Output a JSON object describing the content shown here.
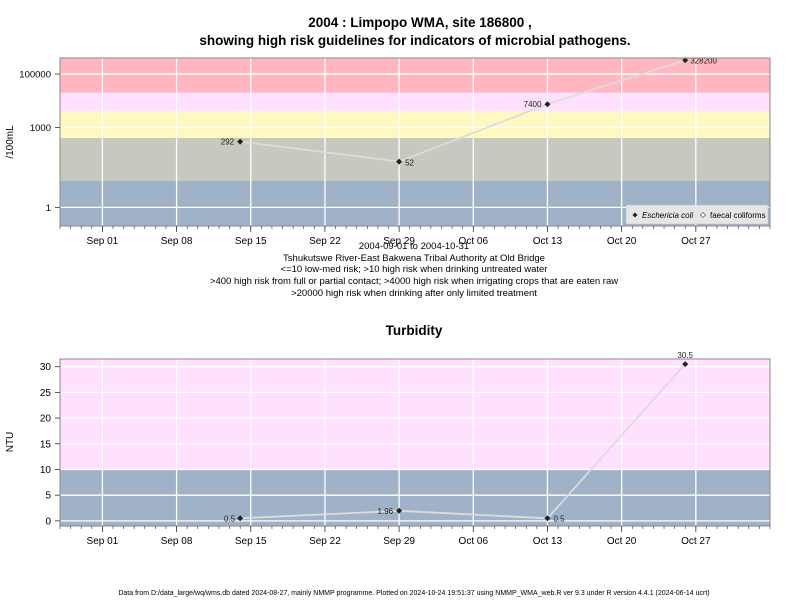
{
  "title_line1": "2004 : Limpopo WMA, site 186800 ,",
  "title_line2": "showing high risk guidelines for indicators of microbial pathogens.",
  "x_ticks": [
    "Sep 01",
    "Sep 08",
    "Sep 15",
    "Sep 22",
    "Sep 29",
    "Oct 06",
    "Oct 13",
    "Oct 20",
    "Oct 27"
  ],
  "subtitle_lines": [
    "2004-09-01 to 2004-10-31",
    "Tshukutswe River-East Bakwena Tribal Authority at Old Bridge",
    "<=10 low-med risk; >10 high risk when drinking untreated water",
    ">400 high risk from full or partial contact; >4000 high risk when irrigating crops that are eaten raw",
    ">20000 high risk when drinking after only limited treatment"
  ],
  "footer": "Data from D:/data_large/wq/wms.db dated 2024-08-27, mainly NMMP programme. Plotted on 2024-10-24 19:51:37 using NMMP_WMA_web.R ver 9.3 under R version 4.4.1 (2024-06-14 ucrt)",
  "colors": {
    "band_red": "#ffb6c1",
    "band_pink": "#ffe0ff",
    "band_yellow": "#fff8c0",
    "band_gray": "#c5c9be",
    "band_blue": "#a0b2c8",
    "line": "#dcdcdc",
    "grid": "#ffffff"
  },
  "chart_data": [
    {
      "type": "line",
      "scale": "log",
      "ylabel": "/100mL",
      "y_ticks": [
        "1",
        "1000",
        "100000"
      ],
      "legend": [
        "Eschericia coli",
        "faecal coliforms"
      ],
      "legend_position": "bottom-right",
      "grid": true,
      "xlim": [
        "2004-08-28",
        "2004-11-03"
      ],
      "ylim": [
        0.2,
        400000
      ],
      "bands": [
        {
          "from": 0.2,
          "to": 10,
          "color": "band_blue"
        },
        {
          "from": 10,
          "to": 400,
          "color": "band_gray"
        },
        {
          "from": 400,
          "to": 4000,
          "color": "band_yellow"
        },
        {
          "from": 4000,
          "to": 20000,
          "color": "band_pink"
        },
        {
          "from": 20000,
          "to": 400000,
          "color": "band_red"
        }
      ],
      "series": [
        {
          "name": "Eschericia coli",
          "x": [
            "2004-09-14",
            "2004-09-29",
            "2004-10-13",
            "2004-10-26"
          ],
          "y": [
            292,
            52,
            7400,
            328200
          ],
          "labels": [
            "292",
            "52",
            "7400",
            "328200"
          ]
        }
      ]
    },
    {
      "type": "line",
      "title": "Turbidity",
      "ylabel": "NTU",
      "y_ticks": [
        "0",
        "5",
        "10",
        "15",
        "20",
        "25",
        "30"
      ],
      "grid": true,
      "xlim": [
        "2004-08-28",
        "2004-11-03"
      ],
      "ylim": [
        -1,
        31.5
      ],
      "bands": [
        {
          "from": -1,
          "to": 10,
          "color": "band_blue"
        },
        {
          "from": 10,
          "to": 31.5,
          "color": "band_pink"
        }
      ],
      "series": [
        {
          "name": "",
          "x": [
            "2004-09-14",
            "2004-09-29",
            "2004-10-13",
            "2004-10-26"
          ],
          "y": [
            0.5,
            1.96,
            0.5,
            30.5
          ],
          "labels": [
            "0.5",
            "1.96",
            "0.5",
            "30.5"
          ]
        }
      ]
    }
  ]
}
